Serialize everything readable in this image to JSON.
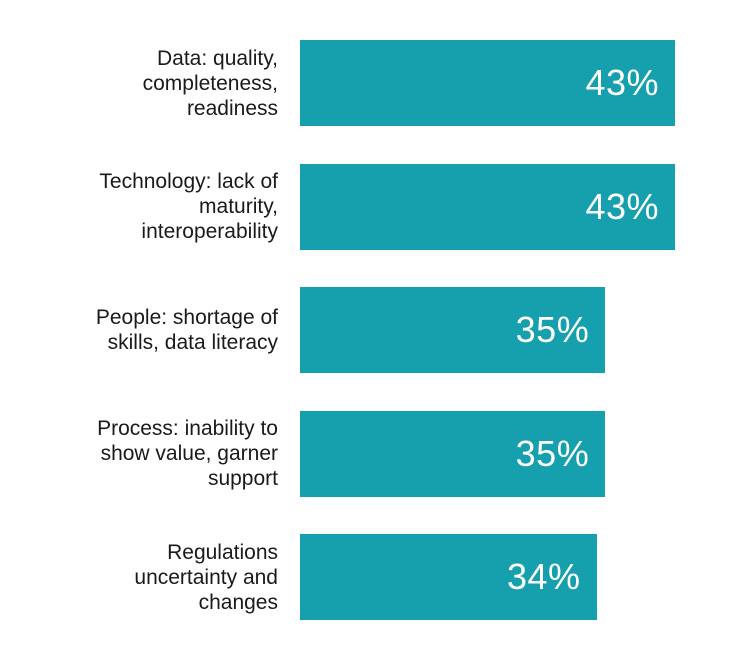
{
  "chart_data": {
    "type": "bar",
    "orientation": "horizontal",
    "categories": [
      "Data: quality,\ncompleteness,\nreadiness",
      "Technology: lack of\nmaturity,\ninteroperability",
      "People: shortage of\nskills, data literacy",
      "Process: inability to\nshow value, garner\nsupport",
      "Regulations\nuncertainty and\nchanges"
    ],
    "values": [
      43,
      43,
      35,
      35,
      34
    ],
    "value_labels": [
      "43%",
      "43%",
      "35%",
      "35%",
      "34%"
    ],
    "title": "",
    "xlabel": "",
    "ylabel": "",
    "xlim": [
      0,
      43
    ],
    "grid": false,
    "legend": "none",
    "colors": {
      "bar": "#169fac",
      "value_text": "#ffffff",
      "label_text": "#1a1a1a"
    }
  }
}
